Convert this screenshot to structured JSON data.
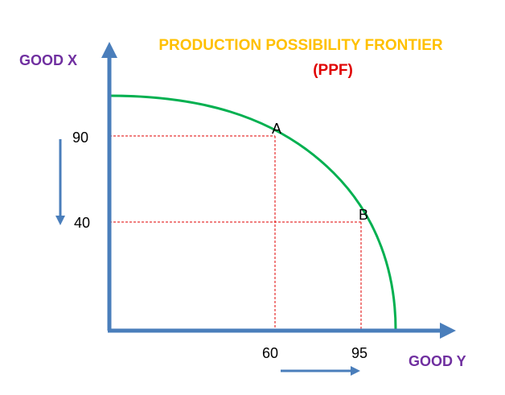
{
  "title": "PRODUCTION POSSIBILITY FRONTIER",
  "subtitle": "(PPF)",
  "y_axis_label": "GOOD X",
  "x_axis_label": "GOOD Y",
  "points": [
    {
      "label": "A",
      "good_y": 60,
      "good_x": 90
    },
    {
      "label": "B",
      "good_y": 95,
      "good_x": 40
    }
  ],
  "y_ticks": [
    "90",
    "40"
  ],
  "x_ticks": [
    "60",
    "95"
  ],
  "colors": {
    "axis": "#4a7ebb",
    "curve": "#00b050",
    "guide": "#e00000",
    "title": "#ffc000",
    "subtitle": "#e00000",
    "axis_label": "#7030a0"
  }
}
